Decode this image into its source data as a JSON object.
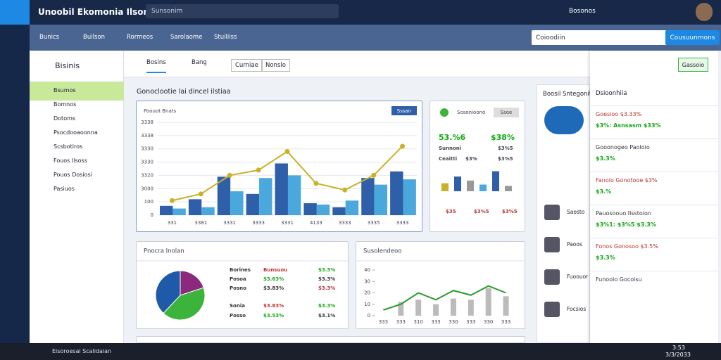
{
  "app": {
    "title": "Unoobil Ekomonia Ilsom",
    "search": "Sunsonim",
    "user": "Bosonos"
  },
  "nav": {
    "items": [
      "Bunics",
      "Builson",
      "Rormeos",
      "Sarolaome",
      "Stuiliiss"
    ],
    "search": "Coioodiin",
    "button": "Cousuunmons"
  },
  "sidebar": {
    "title": "Bisinis",
    "items": [
      "Bsumos",
      "Bomnos",
      "Dotoms",
      "Psocdooaoonna",
      "Scsbotiros",
      "Fouos Ilsoss",
      "Pouos Dosiosi",
      "Pasiuos"
    ]
  },
  "tabs": [
    "Bosins",
    "Bang",
    "Curniae",
    "Nonslo"
  ],
  "section_title": "Gonoclootie lai dincel ilstiaa",
  "main_chart": {
    "type": "bar",
    "legend": "Poouot Bnats",
    "button": "Sssan",
    "categories": [
      "331",
      "3381",
      "3331",
      "3333",
      "3331",
      "4133",
      "3333",
      "3335",
      "3333"
    ],
    "series": [
      {
        "color": "#2f5fa8",
        "values": [
          70,
          120,
          290,
          160,
          390,
          90,
          60,
          280,
          330
        ]
      },
      {
        "color": "#4aa8dc",
        "values": [
          50,
          60,
          180,
          280,
          300,
          80,
          110,
          230,
          270
        ]
      }
    ],
    "line": {
      "color": "#c9b227",
      "values": [
        110,
        160,
        300,
        340,
        480,
        240,
        190,
        300,
        520
      ]
    },
    "ylim": [
      0,
      700
    ],
    "yticks": [
      0,
      100,
      {
        "value": 200,
        "label": "3000"
      },
      {
        "value": 300,
        "label": "3320"
      },
      {
        "value": 400,
        "label": "3330"
      },
      {
        "value": 500,
        "label": "3330"
      },
      {
        "value": 600,
        "label": "3338"
      },
      {
        "value": 700,
        "label": "3338"
      }
    ]
  },
  "stat_card": {
    "title": "Sosonioono",
    "button": "Ssoe",
    "stats": [
      "53.%6",
      "$38%",
      "Sunnoni",
      "$3%5",
      "Ceaitti",
      "$3%",
      "$3%5"
    ],
    "chart": {
      "type": "bar",
      "ylim": [
        0,
        100
      ],
      "colors": [
        "#c9b227",
        "#2f5fa8",
        "#999999",
        "#4aa8dc",
        "#2f5fa8",
        "#999999"
      ],
      "values": [
        30,
        55,
        40,
        25,
        75,
        20
      ]
    },
    "footer": [
      "$35",
      "$3%5",
      "$3%5"
    ]
  },
  "pie_card": {
    "title": "Pnocra Inolan",
    "chart": {
      "type": "pie",
      "values": [
        20,
        42,
        38
      ],
      "colors": [
        "#8b2a7a",
        "#3cb43c",
        "#1f5aa8"
      ]
    },
    "rows": [
      [
        "Borines",
        "Bunsuou",
        "$3.3%"
      ],
      [
        "Posoa",
        "$3.63%",
        "$3.3%"
      ],
      [
        "Posno",
        "$3.83%",
        "$3.3%"
      ],
      [
        "Sonia",
        "$3.83%",
        "$3.3%"
      ],
      [
        "Posso",
        "$3.53%",
        "$3.1%"
      ]
    ]
  },
  "line_card": {
    "title": "Susolendeoo",
    "chart": {
      "type": "line",
      "categories": [
        "333",
        "333",
        "310",
        "333",
        "330",
        "333",
        "330",
        "333"
      ],
      "bars": [
        0,
        12,
        14,
        10,
        15,
        14,
        24,
        17
      ],
      "values": [
        5,
        10,
        20,
        14,
        22,
        18,
        26,
        20
      ],
      "ylim": [
        0,
        40
      ],
      "yticks": [
        0,
        10,
        20,
        30,
        40
      ]
    }
  },
  "mid_panel": {
    "title": "Boosil Sntegonito",
    "items": [
      "Saosto",
      "Paoos",
      "Fuoouor",
      "Focsios"
    ]
  },
  "right_panel": {
    "button": "Gassoio",
    "title": "Dsioonhiia",
    "items": [
      {
        "text": "Goesioo $3.33%",
        "sub": "$3%: Asnsasm $33%"
      },
      {
        "text": "Gooonogeo Paoloio",
        "sub": "$3.3%"
      },
      {
        "text": "Fanoio Gonotooe $3%",
        "sub": "$3.%"
      },
      {
        "text": "Pauosoouo Ilsstoion",
        "sub": "$3%1: $3%5 $3.3%"
      },
      {
        "text": "Fonos Gonosoo $3.5%",
        "sub": "$3.3%"
      },
      {
        "text": "Funooio Gocoisu"
      }
    ]
  },
  "taskbar": {
    "search": "Eisoroesal Scalidaian",
    "time": "3:53",
    "date": "3/3/2033"
  }
}
